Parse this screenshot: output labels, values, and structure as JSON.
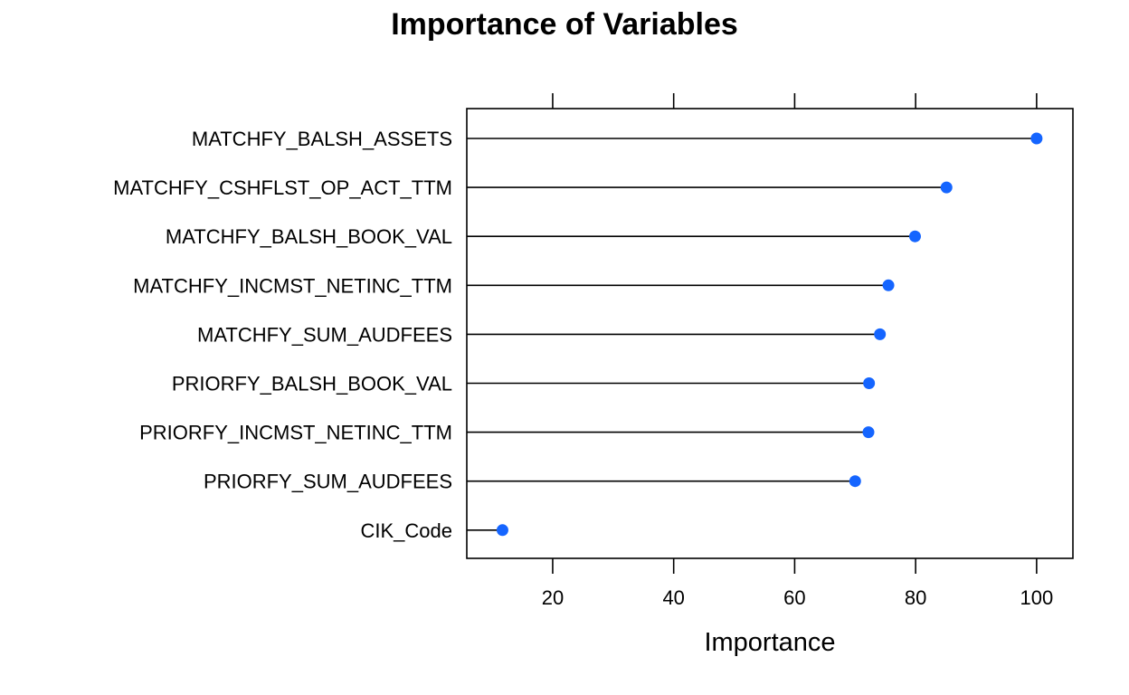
{
  "chart_data": {
    "type": "dot",
    "title": "Importance of Variables",
    "xlabel": "Importance",
    "ylabel": "",
    "xlim": [
      5.8,
      106
    ],
    "xticks": [
      20,
      40,
      60,
      80,
      100
    ],
    "grid": false,
    "point_color": "#1565FF",
    "line_color": "#000000",
    "categories": [
      "MATCHFY_BALSH_ASSETS",
      "MATCHFY_CSHFLST_OP_ACT_TTM",
      "MATCHFY_BALSH_BOOK_VAL",
      "MATCHFY_INCMST_NETINC_TTM",
      "MATCHFY_SUM_AUDFEES",
      "PRIORFY_BALSH_BOOK_VAL",
      "PRIORFY_INCMST_NETINC_TTM",
      "PRIORFY_SUM_AUDFEES",
      "CIK_Code"
    ],
    "values": [
      100,
      85.1,
      79.9,
      75.5,
      74.1,
      72.3,
      72.2,
      70.0,
      11.7
    ]
  }
}
